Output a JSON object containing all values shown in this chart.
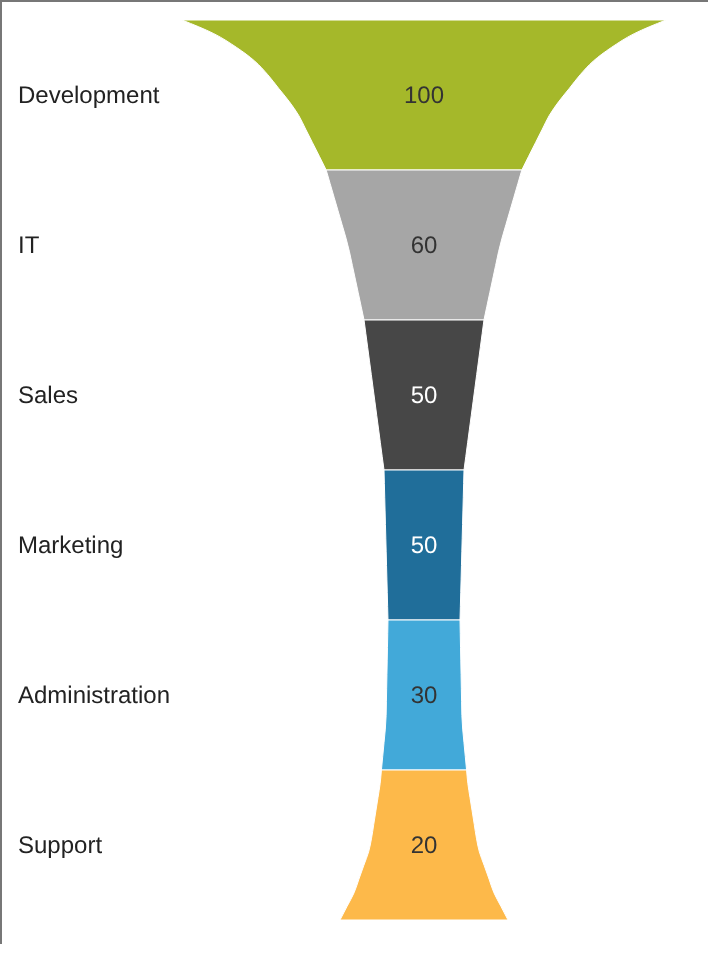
{
  "chart_data": {
    "type": "other",
    "categories": [
      "Development",
      "IT",
      "Sales",
      "Marketing",
      "Administration",
      "Support"
    ],
    "values": [
      100,
      60,
      50,
      50,
      30,
      20
    ],
    "colors": [
      "#a5b82a",
      "#a6a6a6",
      "#474747",
      "#206e9a",
      "#42a9d9",
      "#fdb94a"
    ],
    "data_labels": true
  }
}
